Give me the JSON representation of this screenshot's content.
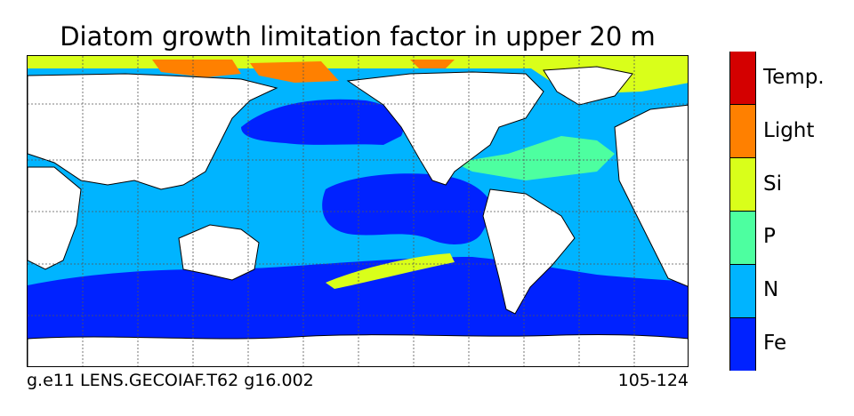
{
  "title": "Diatom growth limitation factor in upper 20 m",
  "footer": {
    "left": "g.e11 LENS.GECOIAF.T62 g16.002",
    "right": "105-124"
  },
  "colorbar": {
    "categories": [
      {
        "label": "Temp.",
        "color": "#d40000"
      },
      {
        "label": "Light",
        "color": "#ff8000"
      },
      {
        "label": "Si",
        "color": "#d9ff1a"
      },
      {
        "label": "P",
        "color": "#4dffa0"
      },
      {
        "label": "N",
        "color": "#00b4ff"
      },
      {
        "label": "Fe",
        "color": "#0022ff"
      }
    ]
  },
  "map": {
    "projection": "Pacific-centered equirectangular",
    "land_color": "#ffffff",
    "gridlines": "dotted"
  }
}
